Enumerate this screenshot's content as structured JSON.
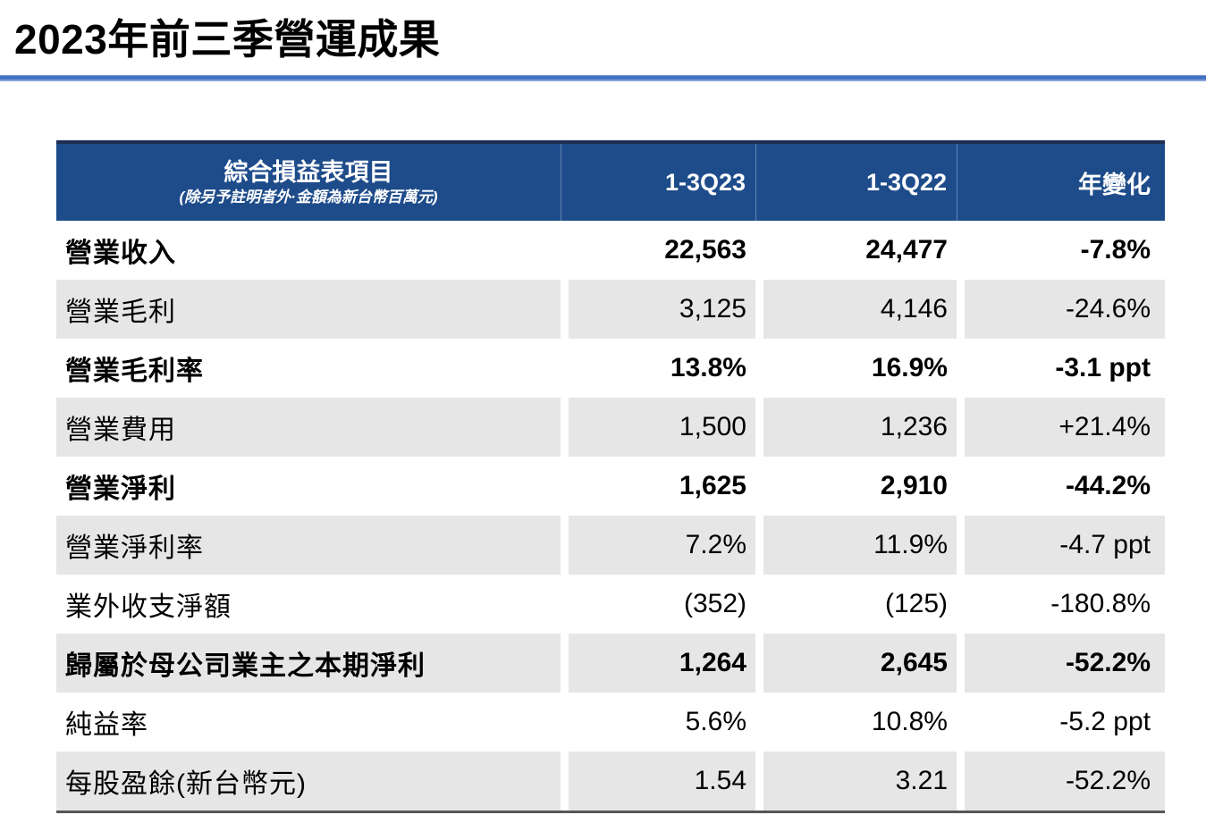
{
  "page": {
    "title": "2023年前三季營運成果"
  },
  "colors": {
    "header_bg": "#1E4C8B",
    "rule_blue": "#4472C4",
    "alt_row": "#E7E6E6",
    "top_border": "#1D2F52",
    "bottom_border": "#55565A"
  },
  "table": {
    "header": {
      "item_title": "綜合損益表項目",
      "item_subtitle": "(除另予註明者外·金額為新台幣百萬元)",
      "columns": [
        "1-3Q23",
        "1-3Q22",
        "年變化"
      ]
    },
    "rows": [
      {
        "label": "營業收入",
        "q23": "22,563",
        "q22": "24,477",
        "yoy": "-7.8%",
        "bold": true
      },
      {
        "label": "營業毛利",
        "q23": "3,125",
        "q22": "4,146",
        "yoy": "-24.6%",
        "bold": false
      },
      {
        "label": "營業毛利率",
        "q23": "13.8%",
        "q22": "16.9%",
        "yoy": "-3.1 ppt",
        "bold": true
      },
      {
        "label": "營業費用",
        "q23": "1,500",
        "q22": "1,236",
        "yoy": "+21.4%",
        "bold": false
      },
      {
        "label": "營業淨利",
        "q23": "1,625",
        "q22": "2,910",
        "yoy": "-44.2%",
        "bold": true
      },
      {
        "label": "營業淨利率",
        "q23": "7.2%",
        "q22": "11.9%",
        "yoy": "-4.7 ppt",
        "bold": false
      },
      {
        "label": "業外收支淨額",
        "q23": "(352)",
        "q22": "(125)",
        "yoy": "-180.8%",
        "bold": false
      },
      {
        "label": "歸屬於母公司業主之本期淨利",
        "q23": "1,264",
        "q22": "2,645",
        "yoy": "-52.2%",
        "bold": true
      },
      {
        "label": "純益率",
        "q23": "5.6%",
        "q22": "10.8%",
        "yoy": "-5.2 ppt",
        "bold": false
      },
      {
        "label": "每股盈餘(新台幣元)",
        "q23": "1.54",
        "q22": "3.21",
        "yoy": "-52.2%",
        "bold": false
      }
    ]
  }
}
